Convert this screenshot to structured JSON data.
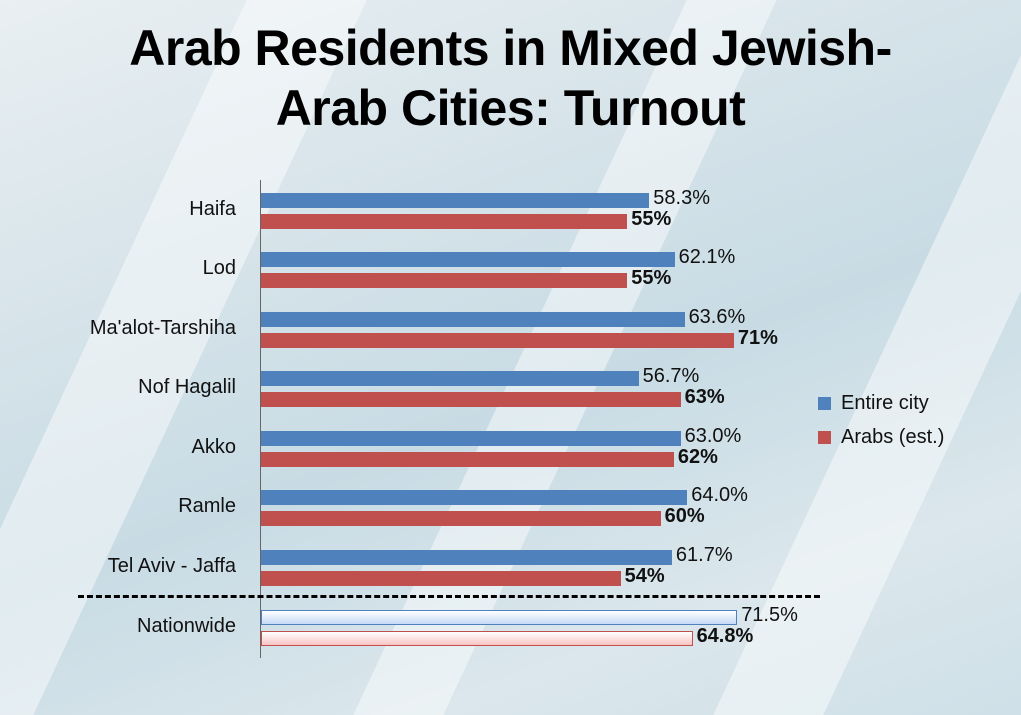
{
  "chart_data": {
    "type": "bar",
    "orientation": "horizontal",
    "title": "Arab Residents in Mixed Jewish-Arab Cities: Turnout",
    "title_lines": [
      "Arab Residents in Mixed Jewish-",
      "Arab Cities: Turnout"
    ],
    "categories": [
      "Haifa",
      "Lod",
      "Ma'alot-Tarshiha",
      "Nof Hagalil",
      "Akko",
      "Ramle",
      "Tel Aviv - Jaffa",
      "Nationwide"
    ],
    "series": [
      {
        "name": "Entire city",
        "color": "#4f81bd",
        "values": [
          58.3,
          62.1,
          63.6,
          56.7,
          63.0,
          64.0,
          61.7,
          71.5
        ],
        "labels": [
          "58.3%",
          "62.1%",
          "63.6%",
          "56.7%",
          "63.0%",
          "64.0%",
          "61.7%",
          "71.5%"
        ]
      },
      {
        "name": "Arabs (est.)",
        "color": "#c0504d",
        "values": [
          55,
          55,
          71,
          63,
          62,
          60,
          54,
          64.8
        ],
        "labels": [
          "55%",
          "55%",
          "71%",
          "63%",
          "62%",
          "60%",
          "54%",
          "64.8%"
        ]
      }
    ],
    "highlight_category": "Nationwide",
    "highlight_colors": {
      "Entire city": "#c6d9f7",
      "Arabs (est.)": "#f9c4c4"
    },
    "xlim": [
      0,
      100
    ],
    "xlabel": "",
    "ylabel": "",
    "grid": false,
    "legend": {
      "position": "right",
      "entries": [
        "Entire city",
        "Arabs (est.)"
      ]
    },
    "separator": "dashed line before Nationwide"
  }
}
